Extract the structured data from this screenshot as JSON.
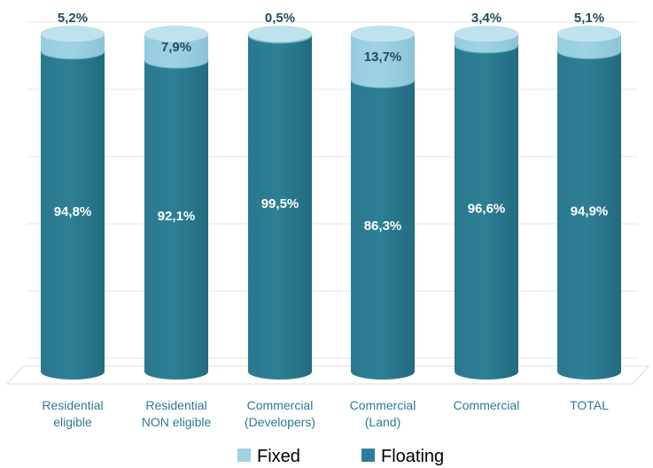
{
  "chart_data": {
    "type": "bar",
    "stacked": true,
    "percent": true,
    "categories": [
      [
        "Residential",
        "eligible"
      ],
      [
        "Residential",
        "NON eligible"
      ],
      [
        "Commercial",
        "(Developers)"
      ],
      [
        "Commercial",
        "(Land)"
      ],
      [
        "Commercial"
      ],
      [
        "TOTAL"
      ]
    ],
    "series": [
      {
        "name": "Floating",
        "color": "#2e7f96",
        "values": [
          94.8,
          92.1,
          99.5,
          86.3,
          96.6,
          94.9
        ],
        "labels": [
          "94,8%",
          "92,1%",
          "99,5%",
          "86,3%",
          "96,6%",
          "94,9%"
        ]
      },
      {
        "name": "Fixed",
        "color": "#9fd3e3",
        "values": [
          5.2,
          7.9,
          0.5,
          13.7,
          3.4,
          5.1
        ],
        "labels": [
          "5,2%",
          "7,9%",
          "0,5%",
          "13,7%",
          "3,4%",
          "5,1%"
        ]
      }
    ],
    "ylim": [
      0,
      100
    ],
    "grid": true,
    "legend": {
      "position": "bottom",
      "items": [
        {
          "name": "Fixed",
          "color": "#9fd3e3"
        },
        {
          "name": "Floating",
          "color": "#2e7f96"
        }
      ]
    },
    "category_label_color": "#2c7a94"
  }
}
